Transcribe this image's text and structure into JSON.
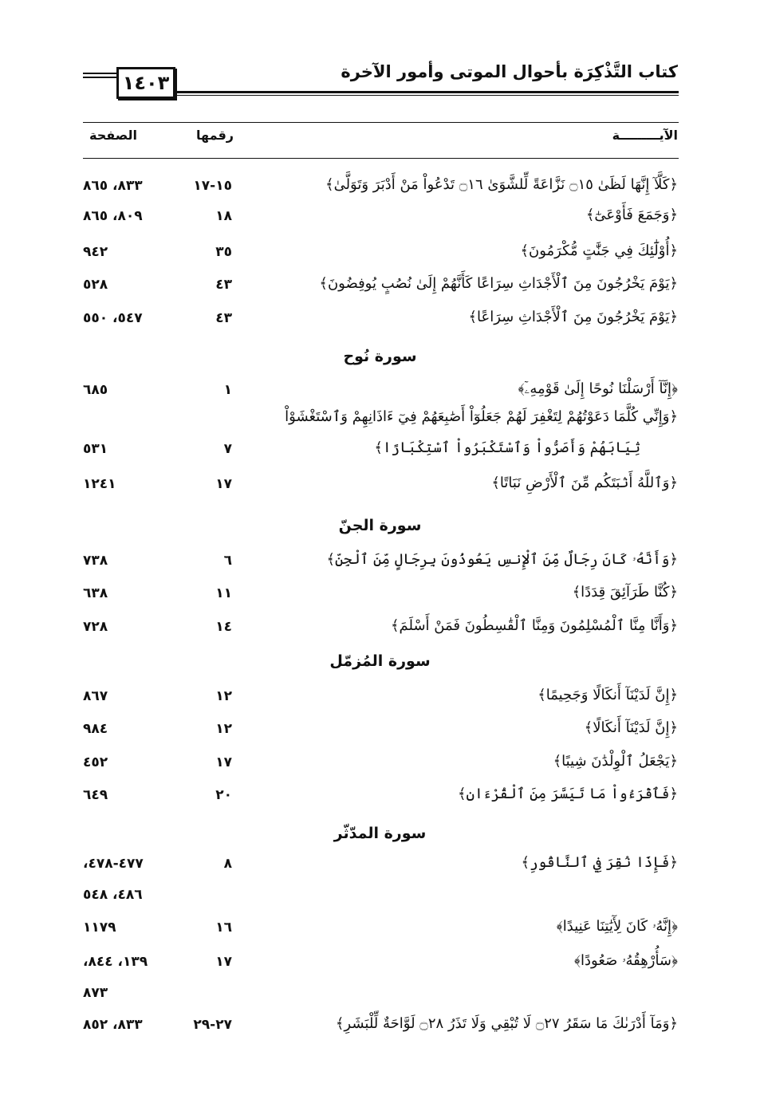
{
  "header": {
    "book_title": "كتاب التَّذْكِرَة بأحوال الموتى وأمور الآخرة",
    "page_number": "١٤٠٣"
  },
  "columns": {
    "verse": "الآيـــــــــة",
    "verse_number": "رقمها",
    "page": "الصفحة"
  },
  "entries": [
    {
      "type": "row",
      "verse": [
        "﴿كَلَّآ إِنَّهَا لَظَىٰ ۝١٥ نَزَّاعَةً لِّلشَّوَىٰ ۝١٦ تَدْعُواْ مَنْ أَدْبَرَ وَتَوَلَّىٰ﴾"
      ],
      "number": "١٥-١٧",
      "pages": [
        "٨٣٣، ٨٦٥"
      ]
    },
    {
      "type": "row",
      "verse": [
        "﴿وَجَمَعَ فَأَوْعَىٰٓ﴾"
      ],
      "number": "١٨",
      "pages": [
        "٨٠٩، ٨٦٥"
      ]
    },
    {
      "type": "row",
      "verse": [
        "﴿أُوْلَٰٓئِكَ فِي جَنَّٰتٍ مُّكْرَمُونَ﴾"
      ],
      "number": "٣٥",
      "pages": [
        "٩٤٢"
      ]
    },
    {
      "type": "row",
      "verse": [
        "﴿يَوْمَ يَخْرُجُونَ مِنَ ٱلْأَجْدَاثِ سِرَاعًا كَأَنَّهُمْ إِلَىٰ نُصُبٍ يُوفِضُونَ﴾"
      ],
      "number": "٤٣",
      "pages": [
        "٥٢٨"
      ]
    },
    {
      "type": "row",
      "verse": [
        "﴿يَوْمَ يَخْرُجُونَ مِنَ ٱلْأَجْدَاثِ سِرَاعًا﴾"
      ],
      "number": "٤٣",
      "pages": [
        "٥٤٧، ٥٥٠"
      ]
    },
    {
      "type": "surah",
      "title": "سورة نُوح"
    },
    {
      "type": "row",
      "verse": [
        "﴿إِنَّآ أَرْسَلْنَا نُوحًا إِلَىٰ قَوْمِهِۦٓ﴾"
      ],
      "number": "١",
      "pages": [
        "٦٨٥"
      ]
    },
    {
      "type": "row",
      "verse": [
        "﴿وَإِنِّي كُلَّمَا دَعَوْتُهُمْ لِتَغْفِرَ لَهُمْ جَعَلُوٓاْ أَصَٰبِعَهُمْ فِيٓ ءَاذَانِهِمْ وَٱسْتَغْشَوْاْ",
        "ثِيَابَهُمْ وَأَصَرُّواْ وَٱسْتَكْبَرُواْ ٱسْتِكْبَارًا﴾"
      ],
      "number": "٧",
      "pages": [
        "٥٣١"
      ]
    },
    {
      "type": "row",
      "verse": [
        "﴿وَٱللَّهُ أَنۢبَتَكُم مِّنَ ٱلْأَرْضِ نَبَاتًا﴾"
      ],
      "number": "١٧",
      "pages": [
        "١٢٤١"
      ]
    },
    {
      "type": "surah",
      "title": "سورة الجنّ"
    },
    {
      "type": "row",
      "verse": [
        "﴿وَأَنَّهُۥ كَانَ رِجَالٌ مِّنَ ٱلْإِنسِ يَعُوذُونَ بِرِجَالٍ مِّنَ ٱلْجِنِّ﴾"
      ],
      "number": "٦",
      "pages": [
        "٧٣٨"
      ]
    },
    {
      "type": "row",
      "verse": [
        "﴿كُنَّا طَرَآئِقَ قِدَدًا﴾"
      ],
      "number": "١١",
      "pages": [
        "٦٣٨"
      ]
    },
    {
      "type": "row",
      "verse": [
        "﴿وَأَنَّا مِنَّا ٱلْمُسْلِمُونَ وَمِنَّا ٱلْقَٰسِطُونَ فَمَنْ أَسْلَمَ﴾"
      ],
      "number": "١٤",
      "pages": [
        "٧٢٨"
      ]
    },
    {
      "type": "surah",
      "title": "سورة المُزمّل"
    },
    {
      "type": "row",
      "verse": [
        "﴿إِنَّ لَدَيْنَآ أَنكَالًا وَجَحِيمًا﴾"
      ],
      "number": "١٢",
      "pages": [
        "٨٦٧"
      ]
    },
    {
      "type": "row",
      "verse": [
        "﴿إِنَّ لَدَيْنَآ أَنكَالًا﴾"
      ],
      "number": "١٢",
      "pages": [
        "٩٨٤"
      ]
    },
    {
      "type": "row",
      "verse": [
        "﴿يَجْعَلُ ٱلْوِلْدَٰنَ شِيبًا﴾"
      ],
      "number": "١٧",
      "pages": [
        "٤٥٢"
      ]
    },
    {
      "type": "row",
      "verse": [
        "﴿فَٱقْرَءُواْ مَا تَيَسَّرَ مِنَ ٱلْقُرْءَانِ﴾"
      ],
      "number": "٢٠",
      "pages": [
        "٦٤٩"
      ]
    },
    {
      "type": "surah",
      "title": "سورة المدّثّر"
    },
    {
      "type": "row",
      "verse": [
        "﴿فَإِذَا نُقِرَ فِي ٱلنَّاقُورِ﴾"
      ],
      "number": "٨",
      "pages": [
        "٤٧٧-٤٧٨،",
        "٤٨٦، ٥٤٨"
      ]
    },
    {
      "type": "row",
      "verse": [
        "﴿إِنَّهُۥ كَانَ لِأٓيَٰتِنَا عَنِيدًا﴾"
      ],
      "number": "١٦",
      "pages": [
        "١١٧٩"
      ]
    },
    {
      "type": "row",
      "verse": [
        "﴿سَأُرْهِقُهُۥ صَعُودًا﴾"
      ],
      "number": "١٧",
      "pages": [
        "١٣٩، ٨٤٤،",
        "٨٧٣"
      ]
    },
    {
      "type": "row",
      "verse": [
        "﴿وَمَآ أَدْرَىٰكَ مَا سَقَرُ ۝٢٧ لَا تُبْقِي وَلَا تَذَرُ ۝٢٨ لَوَّاحَةٌ لِّلْبَشَرِ﴾"
      ],
      "number": "٢٧-٢٩",
      "pages": [
        "٨٣٣، ٨٥٢"
      ]
    }
  ]
}
